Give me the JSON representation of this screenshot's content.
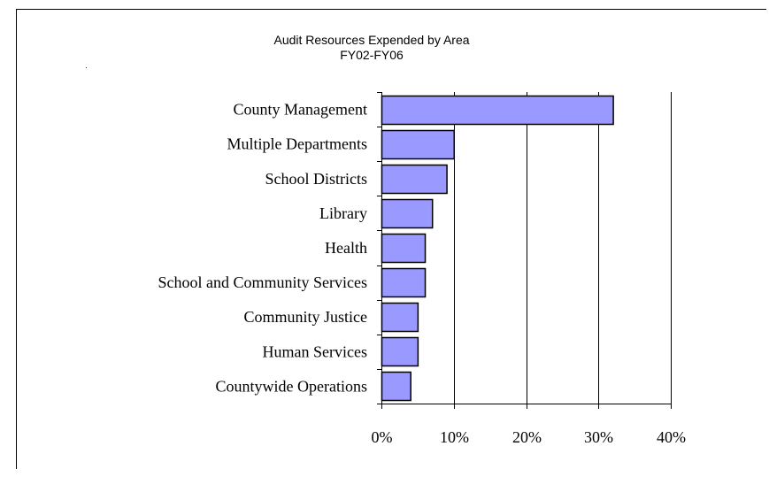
{
  "chart_data": {
    "type": "bar",
    "orientation": "horizontal",
    "title": "Audit Resources Expended by Area",
    "subtitle": "FY02-FY06",
    "categories": [
      "County Management",
      "Multiple Departments",
      "School Districts",
      "Library",
      "Health",
      "School and Community Services",
      "Community Justice",
      "Human Services",
      "Countywide Operations"
    ],
    "values": [
      32,
      10,
      9,
      7,
      6,
      6,
      5,
      5,
      4
    ],
    "xlim": [
      0,
      40
    ],
    "xticks": [
      "0%",
      "10%",
      "20%",
      "30%",
      "40%"
    ],
    "grid": true,
    "legend": "none",
    "bar_color": "#9999ff"
  }
}
